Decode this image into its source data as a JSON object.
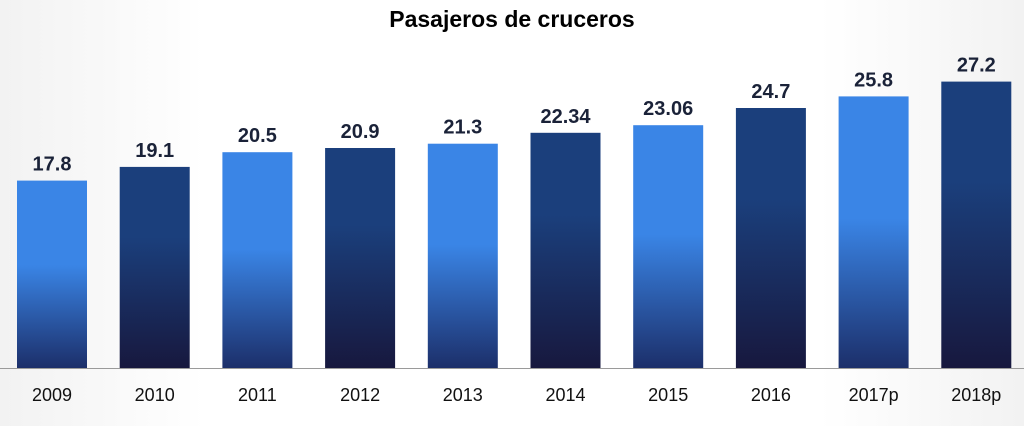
{
  "chart_data": {
    "type": "bar",
    "title": "Pasajeros de cruceros",
    "categories": [
      "2009",
      "2010",
      "2011",
      "2012",
      "2013",
      "2014",
      "2015",
      "2016",
      "2017p",
      "2018p"
    ],
    "values": [
      17.8,
      19.1,
      20.5,
      20.9,
      21.3,
      22.34,
      23.06,
      24.7,
      25.8,
      27.2
    ],
    "value_labels": [
      "17.8",
      "19.1",
      "20.5",
      "20.9",
      "21.3",
      "22.34",
      "23.06",
      "24.7",
      "25.8",
      "27.2"
    ],
    "xlabel": "",
    "ylabel": "",
    "ylim": [
      0,
      28.4
    ],
    "grid": false,
    "legend": "none",
    "bar_styles": [
      "light",
      "dark",
      "light",
      "dark",
      "light",
      "dark",
      "light",
      "dark",
      "light",
      "dark"
    ],
    "colors": {
      "light_top": "#3a85e6",
      "light_bottom": "#1c2f6a",
      "dark_top": "#1b3f7c",
      "dark_bottom": "#17183e",
      "axis": "#9a9a9a",
      "label": "#1a2238"
    }
  }
}
